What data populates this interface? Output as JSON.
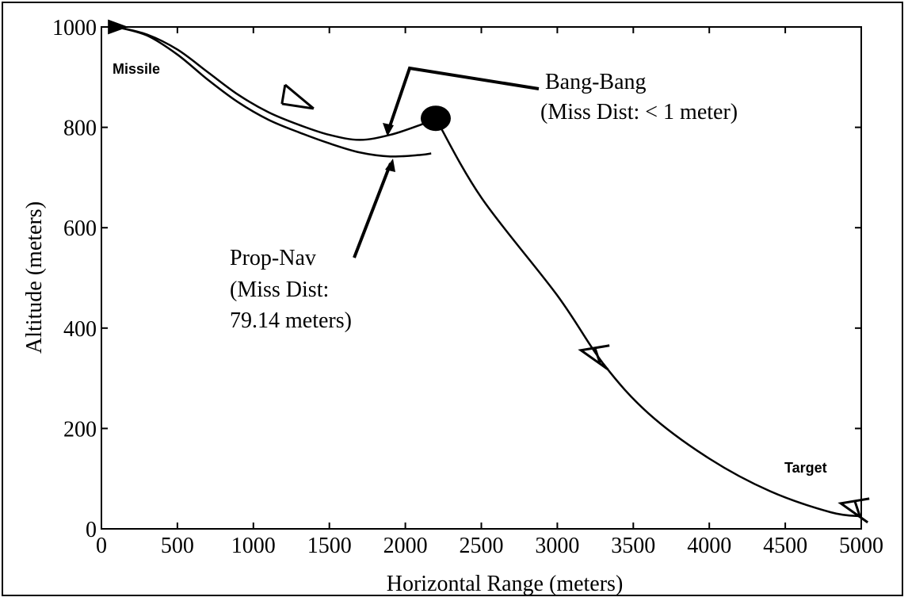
{
  "chart_data": {
    "type": "line",
    "title": "",
    "xlabel": "Horizontal Range (meters)",
    "ylabel": "Altitude (meters)",
    "xlim": [
      0,
      5000
    ],
    "ylim": [
      0,
      1000
    ],
    "xticks": [
      "0",
      "500",
      "1000",
      "1500",
      "2000",
      "2500",
      "3000",
      "3500",
      "4000",
      "4500",
      "5000"
    ],
    "yticks": [
      "0",
      "200",
      "400",
      "600",
      "800",
      "1000"
    ],
    "grid": false,
    "series": [
      {
        "name": "Bang-Bang",
        "x": [
          100,
          300,
          500,
          700,
          900,
          1100,
          1300,
          1500,
          1700,
          1900,
          2100,
          2200
        ],
        "y": [
          1000,
          985,
          955,
          910,
          865,
          830,
          805,
          785,
          775,
          785,
          805,
          818
        ]
      },
      {
        "name": "Prop-Nav",
        "x": [
          100,
          300,
          500,
          700,
          900,
          1100,
          1300,
          1500,
          1700,
          1900,
          2100,
          2170
        ],
        "y": [
          1000,
          983,
          945,
          895,
          850,
          815,
          790,
          768,
          750,
          742,
          745,
          748
        ]
      },
      {
        "name": "Target",
        "x": [
          2200,
          2500,
          3000,
          3300,
          3600,
          4000,
          4400,
          4800,
          5000
        ],
        "y": [
          818,
          660,
          465,
          330,
          230,
          140,
          75,
          33,
          25
        ]
      }
    ],
    "annotations": {
      "missile_label": "Missile",
      "target_label": "Target",
      "bangbang_title": "Bang-Bang",
      "bangbang_miss": "(Miss Dist: < 1 meter)",
      "propnav_title": "Prop-Nav",
      "propnav_miss_1": "(Miss Dist:",
      "propnav_miss_2": "79.14 meters)"
    },
    "markers": {
      "intercept_point": {
        "x": 2200,
        "y": 818
      },
      "missile_marker": {
        "x": 1240,
        "y": 850
      },
      "target_marker": {
        "x": 3270,
        "y": 340
      },
      "target_end": {
        "x": 4980,
        "y": 35
      },
      "missile_start": {
        "x": 100,
        "y": 1000
      }
    }
  }
}
